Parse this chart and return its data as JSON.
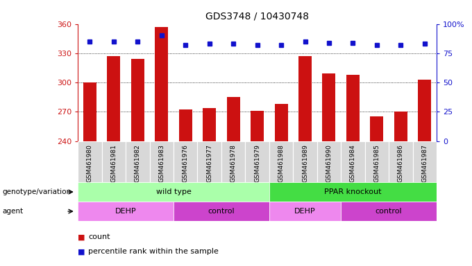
{
  "title": "GDS3748 / 10430748",
  "samples": [
    "GSM461980",
    "GSM461981",
    "GSM461982",
    "GSM461983",
    "GSM461976",
    "GSM461977",
    "GSM461978",
    "GSM461979",
    "GSM461988",
    "GSM461989",
    "GSM461990",
    "GSM461984",
    "GSM461985",
    "GSM461986",
    "GSM461987"
  ],
  "counts": [
    300,
    327,
    324,
    357,
    272,
    274,
    285,
    271,
    278,
    327,
    309,
    308,
    265,
    270,
    303
  ],
  "percentiles": [
    85,
    85,
    85,
    90,
    82,
    83,
    83,
    82,
    82,
    85,
    84,
    84,
    82,
    82,
    83
  ],
  "ymin": 240,
  "ymax": 360,
  "yticks": [
    240,
    270,
    300,
    330,
    360
  ],
  "right_yticks": [
    0,
    25,
    50,
    75,
    100
  ],
  "bar_color": "#cc1111",
  "dot_color": "#1111cc",
  "bg_color": "#ffffff",
  "sample_box_color": "#d8d8d8",
  "genotype_groups": [
    {
      "label": "wild type",
      "start": 0,
      "end": 8,
      "color": "#aaffaa"
    },
    {
      "label": "PPAR knockout",
      "start": 8,
      "end": 15,
      "color": "#44dd44"
    }
  ],
  "agent_groups": [
    {
      "label": "DEHP",
      "start": 0,
      "end": 4,
      "color": "#ee88ee"
    },
    {
      "label": "control",
      "start": 4,
      "end": 8,
      "color": "#cc44cc"
    },
    {
      "label": "DEHP",
      "start": 8,
      "end": 11,
      "color": "#ee88ee"
    },
    {
      "label": "control",
      "start": 11,
      "end": 15,
      "color": "#cc44cc"
    }
  ]
}
